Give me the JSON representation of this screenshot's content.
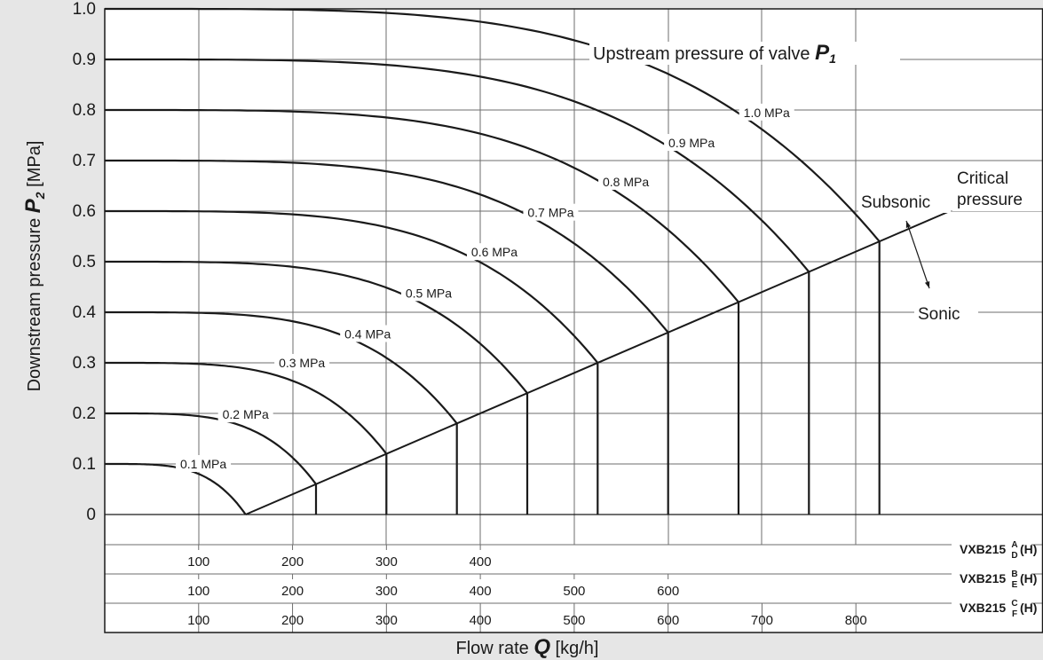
{
  "chart_data": {
    "type": "line",
    "xlabel": "Flow rate",
    "xlabel_symbol": "Q",
    "xlabel_unit": "[kg/h]",
    "ylabel": "Downstream pressure",
    "ylabel_symbol": "P",
    "ylabel_subscript": "2",
    "ylabel_unit": "[MPa]",
    "ylim": [
      0,
      1.0
    ],
    "yticks": [
      "0",
      "0.1",
      "0.2",
      "0.3",
      "0.4",
      "0.5",
      "0.6",
      "0.7",
      "0.8",
      "0.9",
      "1.0"
    ],
    "xlim": [
      0,
      900
    ],
    "grid": true,
    "annotations": {
      "upstream_label": "Upstream pressure of valve",
      "upstream_symbol": "P",
      "upstream_subscript": "1",
      "critical_line1": "Critical",
      "critical_line2": "pressure",
      "subsonic": "Subsonic",
      "sonic": "Sonic"
    },
    "x_scales": [
      {
        "model": "VXB215",
        "superscript": "A",
        "subscript": "D",
        "suffix": "(H)",
        "max": 420,
        "ticks": [
          100,
          200,
          300,
          400
        ]
      },
      {
        "model": "VXB215",
        "superscript": "B",
        "subscript": "E",
        "suffix": "(H)",
        "max": 690,
        "ticks": [
          100,
          200,
          300,
          400,
          500,
          600
        ]
      },
      {
        "model": "VXB215",
        "superscript": "C",
        "subscript": "F",
        "suffix": "(H)",
        "max": 900,
        "ticks": [
          100,
          200,
          300,
          400,
          500,
          600,
          700,
          800
        ]
      }
    ],
    "critical_line": {
      "x": [
        150,
        900
      ],
      "y": [
        0,
        0.6
      ]
    },
    "series": [
      {
        "name": "0.1 MPa",
        "p1": 0.1,
        "choked_flow": 150,
        "knee": 0.75,
        "label_x": 105,
        "label_y": 0.1
      },
      {
        "name": "0.2 MPa",
        "p1": 0.2,
        "choked_flow": 225,
        "knee": 0.75,
        "label_x": 150,
        "label_y": 0.198
      },
      {
        "name": "0.3 MPa",
        "p1": 0.3,
        "choked_flow": 300,
        "knee": 0.75,
        "label_x": 210,
        "label_y": 0.3
      },
      {
        "name": "0.4 MPa",
        "p1": 0.4,
        "choked_flow": 375,
        "knee": 0.75,
        "label_x": 280,
        "label_y": 0.357
      },
      {
        "name": "0.5 MPa",
        "p1": 0.5,
        "choked_flow": 450,
        "knee": 0.75,
        "label_x": 345,
        "label_y": 0.438
      },
      {
        "name": "0.6 MPa",
        "p1": 0.6,
        "choked_flow": 525,
        "knee": 0.75,
        "label_x": 415,
        "label_y": 0.519
      },
      {
        "name": "0.7 MPa",
        "p1": 0.7,
        "choked_flow": 600,
        "knee": 0.75,
        "label_x": 475,
        "label_y": 0.597
      },
      {
        "name": "0.8 MPa",
        "p1": 0.8,
        "choked_flow": 675,
        "knee": 0.75,
        "label_x": 555,
        "label_y": 0.658
      },
      {
        "name": "0.9 MPa",
        "p1": 0.9,
        "choked_flow": 750,
        "knee": 0.75,
        "label_x": 625,
        "label_y": 0.735
      },
      {
        "name": "1.0 MPa",
        "p1": 1.0,
        "choked_flow": 825,
        "knee": 0.75,
        "label_x": 705,
        "label_y": 0.795
      }
    ]
  }
}
